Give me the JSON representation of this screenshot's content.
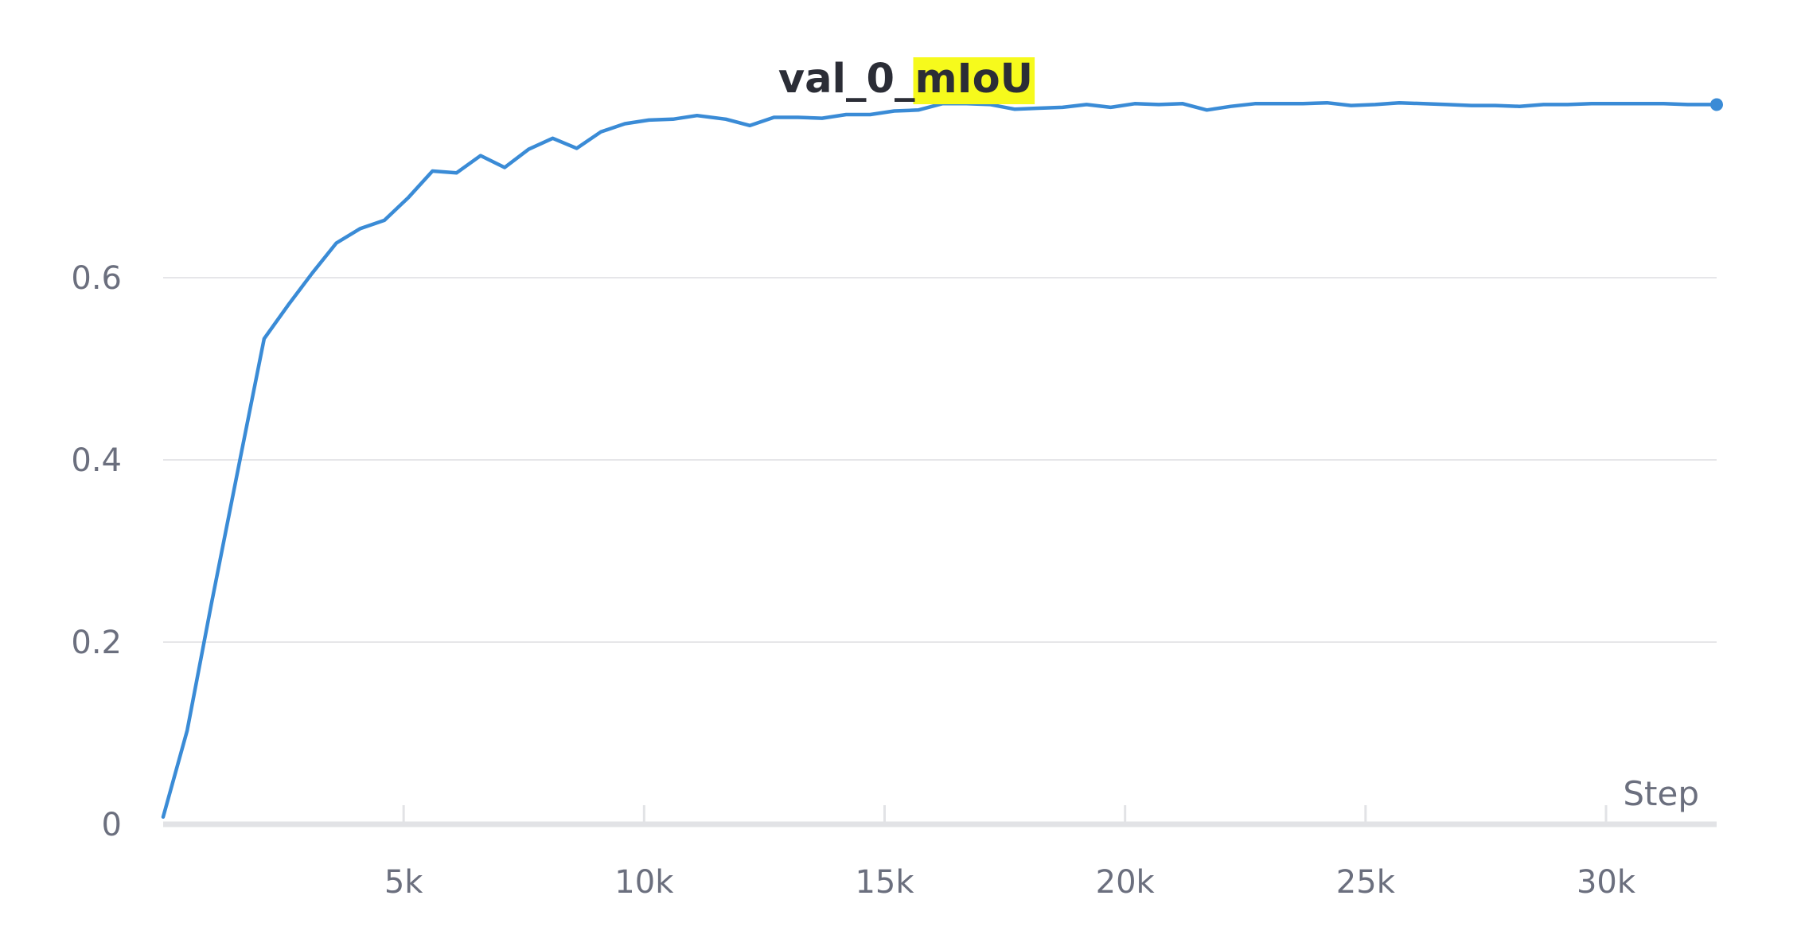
{
  "chart_data": {
    "type": "line",
    "title": {
      "prefix": "val_0_",
      "highlight": "mIoU"
    },
    "xlabel": "Step",
    "ylabel": "",
    "xlim": [
      0,
      32300
    ],
    "ylim": [
      0,
      0.8
    ],
    "x_ticks": [
      {
        "value": 5000,
        "label": "5k"
      },
      {
        "value": 10000,
        "label": "10k"
      },
      {
        "value": 15000,
        "label": "15k"
      },
      {
        "value": 20000,
        "label": "20k"
      },
      {
        "value": 25000,
        "label": "25k"
      },
      {
        "value": 30000,
        "label": "30k"
      }
    ],
    "y_ticks": [
      {
        "value": 0,
        "label": "0"
      },
      {
        "value": 0.2,
        "label": "0.2"
      },
      {
        "value": 0.4,
        "label": "0.4"
      },
      {
        "value": 0.6,
        "label": "0.6"
      }
    ],
    "grid": true,
    "legend": "none",
    "colors": {
      "line": "#3a8bd6",
      "highlight": "#f6fa1c",
      "grid": "#e6e6e9",
      "axis": "#e2e3e6"
    },
    "series": [
      {
        "x": [
          0,
          500,
          1000,
          1600,
          2100,
          2600,
          3100,
          3600,
          4100,
          4600,
          5100,
          5600,
          6100,
          6600,
          7100,
          7600,
          8100,
          8600,
          9100,
          9600,
          10100,
          10600,
          11100,
          11700,
          12200,
          12700,
          13200,
          13700,
          14200,
          14700,
          15200,
          15700,
          16200,
          16700,
          17200,
          17700,
          18200,
          18700,
          19200,
          19700,
          20200,
          20700,
          21200,
          21700,
          22200,
          22700,
          23200,
          23700,
          24200,
          24700,
          25200,
          25700,
          26200,
          26700,
          27200,
          27700,
          28200,
          28700,
          29200,
          29700,
          30200,
          30700,
          31200,
          31700,
          32300
        ],
        "y": [
          0.008,
          0.103,
          0.241,
          0.401,
          0.533,
          0.57,
          0.605,
          0.638,
          0.654,
          0.663,
          0.688,
          0.717,
          0.715,
          0.734,
          0.721,
          0.741,
          0.753,
          0.742,
          0.76,
          0.769,
          0.773,
          0.774,
          0.778,
          0.774,
          0.767,
          0.776,
          0.776,
          0.775,
          0.779,
          0.779,
          0.783,
          0.784,
          0.791,
          0.791,
          0.79,
          0.785,
          0.786,
          0.787,
          0.79,
          0.787,
          0.791,
          0.79,
          0.791,
          0.784,
          0.788,
          0.791,
          0.791,
          0.791,
          0.792,
          0.789,
          0.79,
          0.792,
          0.791,
          0.79,
          0.789,
          0.789,
          0.788,
          0.79,
          0.79,
          0.791,
          0.791,
          0.791,
          0.791,
          0.79,
          0.79
        ]
      }
    ]
  }
}
